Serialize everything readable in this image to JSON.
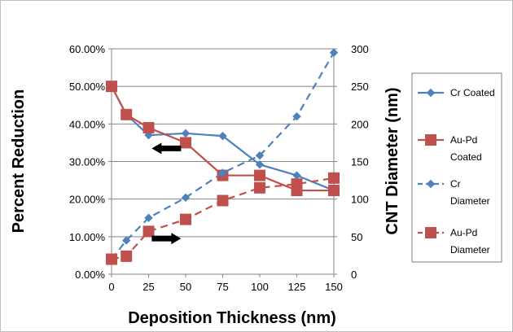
{
  "chart_data": {
    "type": "line",
    "xlabel": "Deposition Thickness (nm)",
    "ylabel": "Percent Reduction",
    "y2label": "CNT Diameter (nm)",
    "x_ticks": [
      "0",
      "25",
      "50",
      "75",
      "100",
      "125",
      "150"
    ],
    "y_ticks": [
      "0.00%",
      "10.00%",
      "20.00%",
      "30.00%",
      "40.00%",
      "50.00%",
      "60.00%"
    ],
    "y2_ticks": [
      "0",
      "50",
      "100",
      "150",
      "200",
      "250",
      "300"
    ],
    "xlim": [
      0,
      150
    ],
    "ylim": [
      0,
      60
    ],
    "y2lim": [
      0,
      300
    ],
    "grid": "horizontal",
    "legend_placement": "right",
    "series": [
      {
        "name": "Cr Coated",
        "axis": "left",
        "style": "solid",
        "marker": "diamond",
        "color": "#4F81BD",
        "x": [
          0,
          10,
          25,
          50,
          75,
          100,
          125,
          150
        ],
        "values": [
          50.0,
          42.5,
          37.0,
          37.5,
          36.8,
          29.2,
          26.3,
          22.3
        ]
      },
      {
        "name": "Au-Pd Coated",
        "axis": "left",
        "style": "solid",
        "marker": "square",
        "color": "#C0504D",
        "x": [
          0,
          10,
          25,
          50,
          75,
          100,
          125,
          150
        ],
        "values": [
          50.0,
          42.5,
          39.0,
          35.0,
          26.3,
          26.3,
          22.3,
          22.3
        ]
      },
      {
        "name": "Cr Diameter",
        "axis": "right",
        "style": "dashed",
        "marker": "diamond",
        "color": "#4F81BD",
        "x": [
          0,
          10,
          25,
          50,
          75,
          100,
          125,
          150
        ],
        "values": [
          20,
          45,
          75,
          102,
          135,
          158,
          210,
          295
        ]
      },
      {
        "name": "Au-Pd Diameter",
        "axis": "right",
        "style": "dashed",
        "marker": "square",
        "color": "#C0504D",
        "x": [
          0,
          10,
          25,
          50,
          75,
          100,
          125,
          150
        ],
        "values": [
          20,
          24,
          57,
          73,
          98,
          115,
          120,
          128
        ]
      }
    ],
    "annotations": [
      {
        "type": "arrow",
        "direction": "left",
        "points_to": "left axis",
        "at_x": 37,
        "at_y_left": 33.5
      },
      {
        "type": "arrow",
        "direction": "right",
        "points_to": "right axis",
        "at_x": 37,
        "at_y_left": 9.5
      }
    ]
  },
  "legend": {
    "entries": [
      "Cr Coated",
      "Au-Pd\nCoated",
      "Cr\nDiameter",
      "Au-Pd\nDiameter"
    ]
  }
}
